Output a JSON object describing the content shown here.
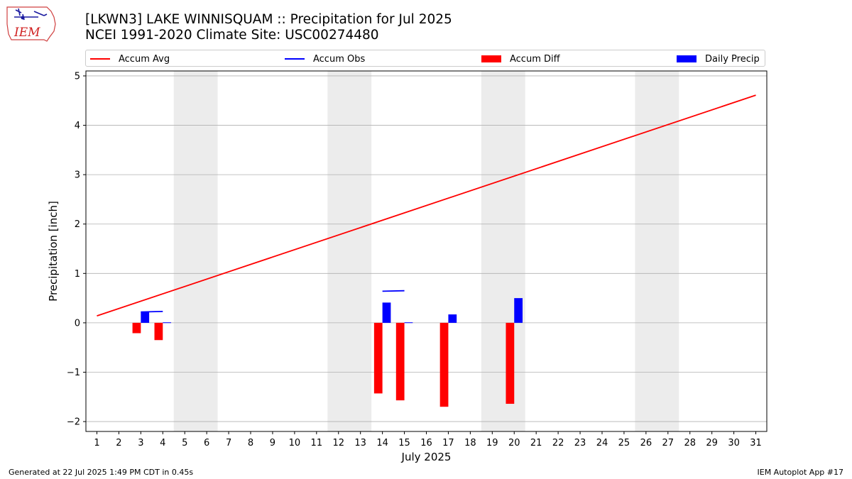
{
  "header": {
    "title_line1": "[LKWN3] LAKE WINNISQUAM :: Precipitation for Jul 2025",
    "title_line2": "NCEI 1991-2020 Climate Site: USC00274480",
    "logo_text": "IEM"
  },
  "footer": {
    "left": "Generated at 22 Jul 2025 1:49 PM CDT in 0.45s",
    "right": "IEM Autoplot App #17"
  },
  "colors": {
    "avg": "#ff0000",
    "obs": "#0000ff",
    "diff": "#ff0000",
    "daily": "#0000ff",
    "weekend": "#ececec",
    "grid": "#b0b0b0"
  },
  "chart_data": {
    "type": "bar",
    "xlabel": "July 2025",
    "ylabel": "Precipitation [inch]",
    "xlim": [
      0.5,
      31.5
    ],
    "ylim": [
      -2.2,
      5.1
    ],
    "yticks": [
      -2,
      -1,
      0,
      1,
      2,
      3,
      4,
      5
    ],
    "ytick_labels": [
      "−2",
      "−1",
      "0",
      "1",
      "2",
      "3",
      "4",
      "5"
    ],
    "xticks": [
      1,
      2,
      3,
      4,
      5,
      6,
      7,
      8,
      9,
      10,
      11,
      12,
      13,
      14,
      15,
      16,
      17,
      18,
      19,
      20,
      21,
      22,
      23,
      24,
      25,
      26,
      27,
      28,
      29,
      30,
      31
    ],
    "xtick_labels": [
      "1",
      "2",
      "3",
      "4",
      "5",
      "6",
      "7",
      "8",
      "9",
      "10",
      "11",
      "12",
      "13",
      "14",
      "15",
      "16",
      "17",
      "18",
      "19",
      "20",
      "21",
      "22",
      "23",
      "24",
      "25",
      "26",
      "27",
      "28",
      "29",
      "30",
      "31"
    ],
    "weekends": [
      [
        5,
        6
      ],
      [
        12,
        13
      ],
      [
        19,
        20
      ],
      [
        26,
        27
      ]
    ],
    "legend": [
      "Accum Avg",
      "Accum Obs",
      "Accum Diff",
      "Daily Precip"
    ],
    "series": [
      {
        "name": "Accum Avg",
        "kind": "line",
        "x": [
          1,
          31
        ],
        "values": [
          0.14,
          4.61
        ]
      },
      {
        "name": "Accum Obs",
        "kind": "line",
        "segments": [
          {
            "x": [
              3,
              4
            ],
            "values": [
              0.22,
              0.23
            ]
          },
          {
            "x": [
              14,
              15
            ],
            "values": [
              0.64,
              0.65
            ]
          }
        ]
      },
      {
        "name": "Accum Diff",
        "kind": "bar",
        "x": [
          3,
          4,
          14,
          15,
          17,
          20
        ],
        "values": [
          -0.21,
          -0.35,
          -1.43,
          -1.57,
          -1.7,
          -1.64
        ]
      },
      {
        "name": "Daily Precip",
        "kind": "bar",
        "x": [
          3,
          4,
          14,
          15,
          17,
          20
        ],
        "values": [
          0.22,
          0.01,
          0.41,
          0.01,
          0.17,
          0.5
        ]
      }
    ]
  }
}
